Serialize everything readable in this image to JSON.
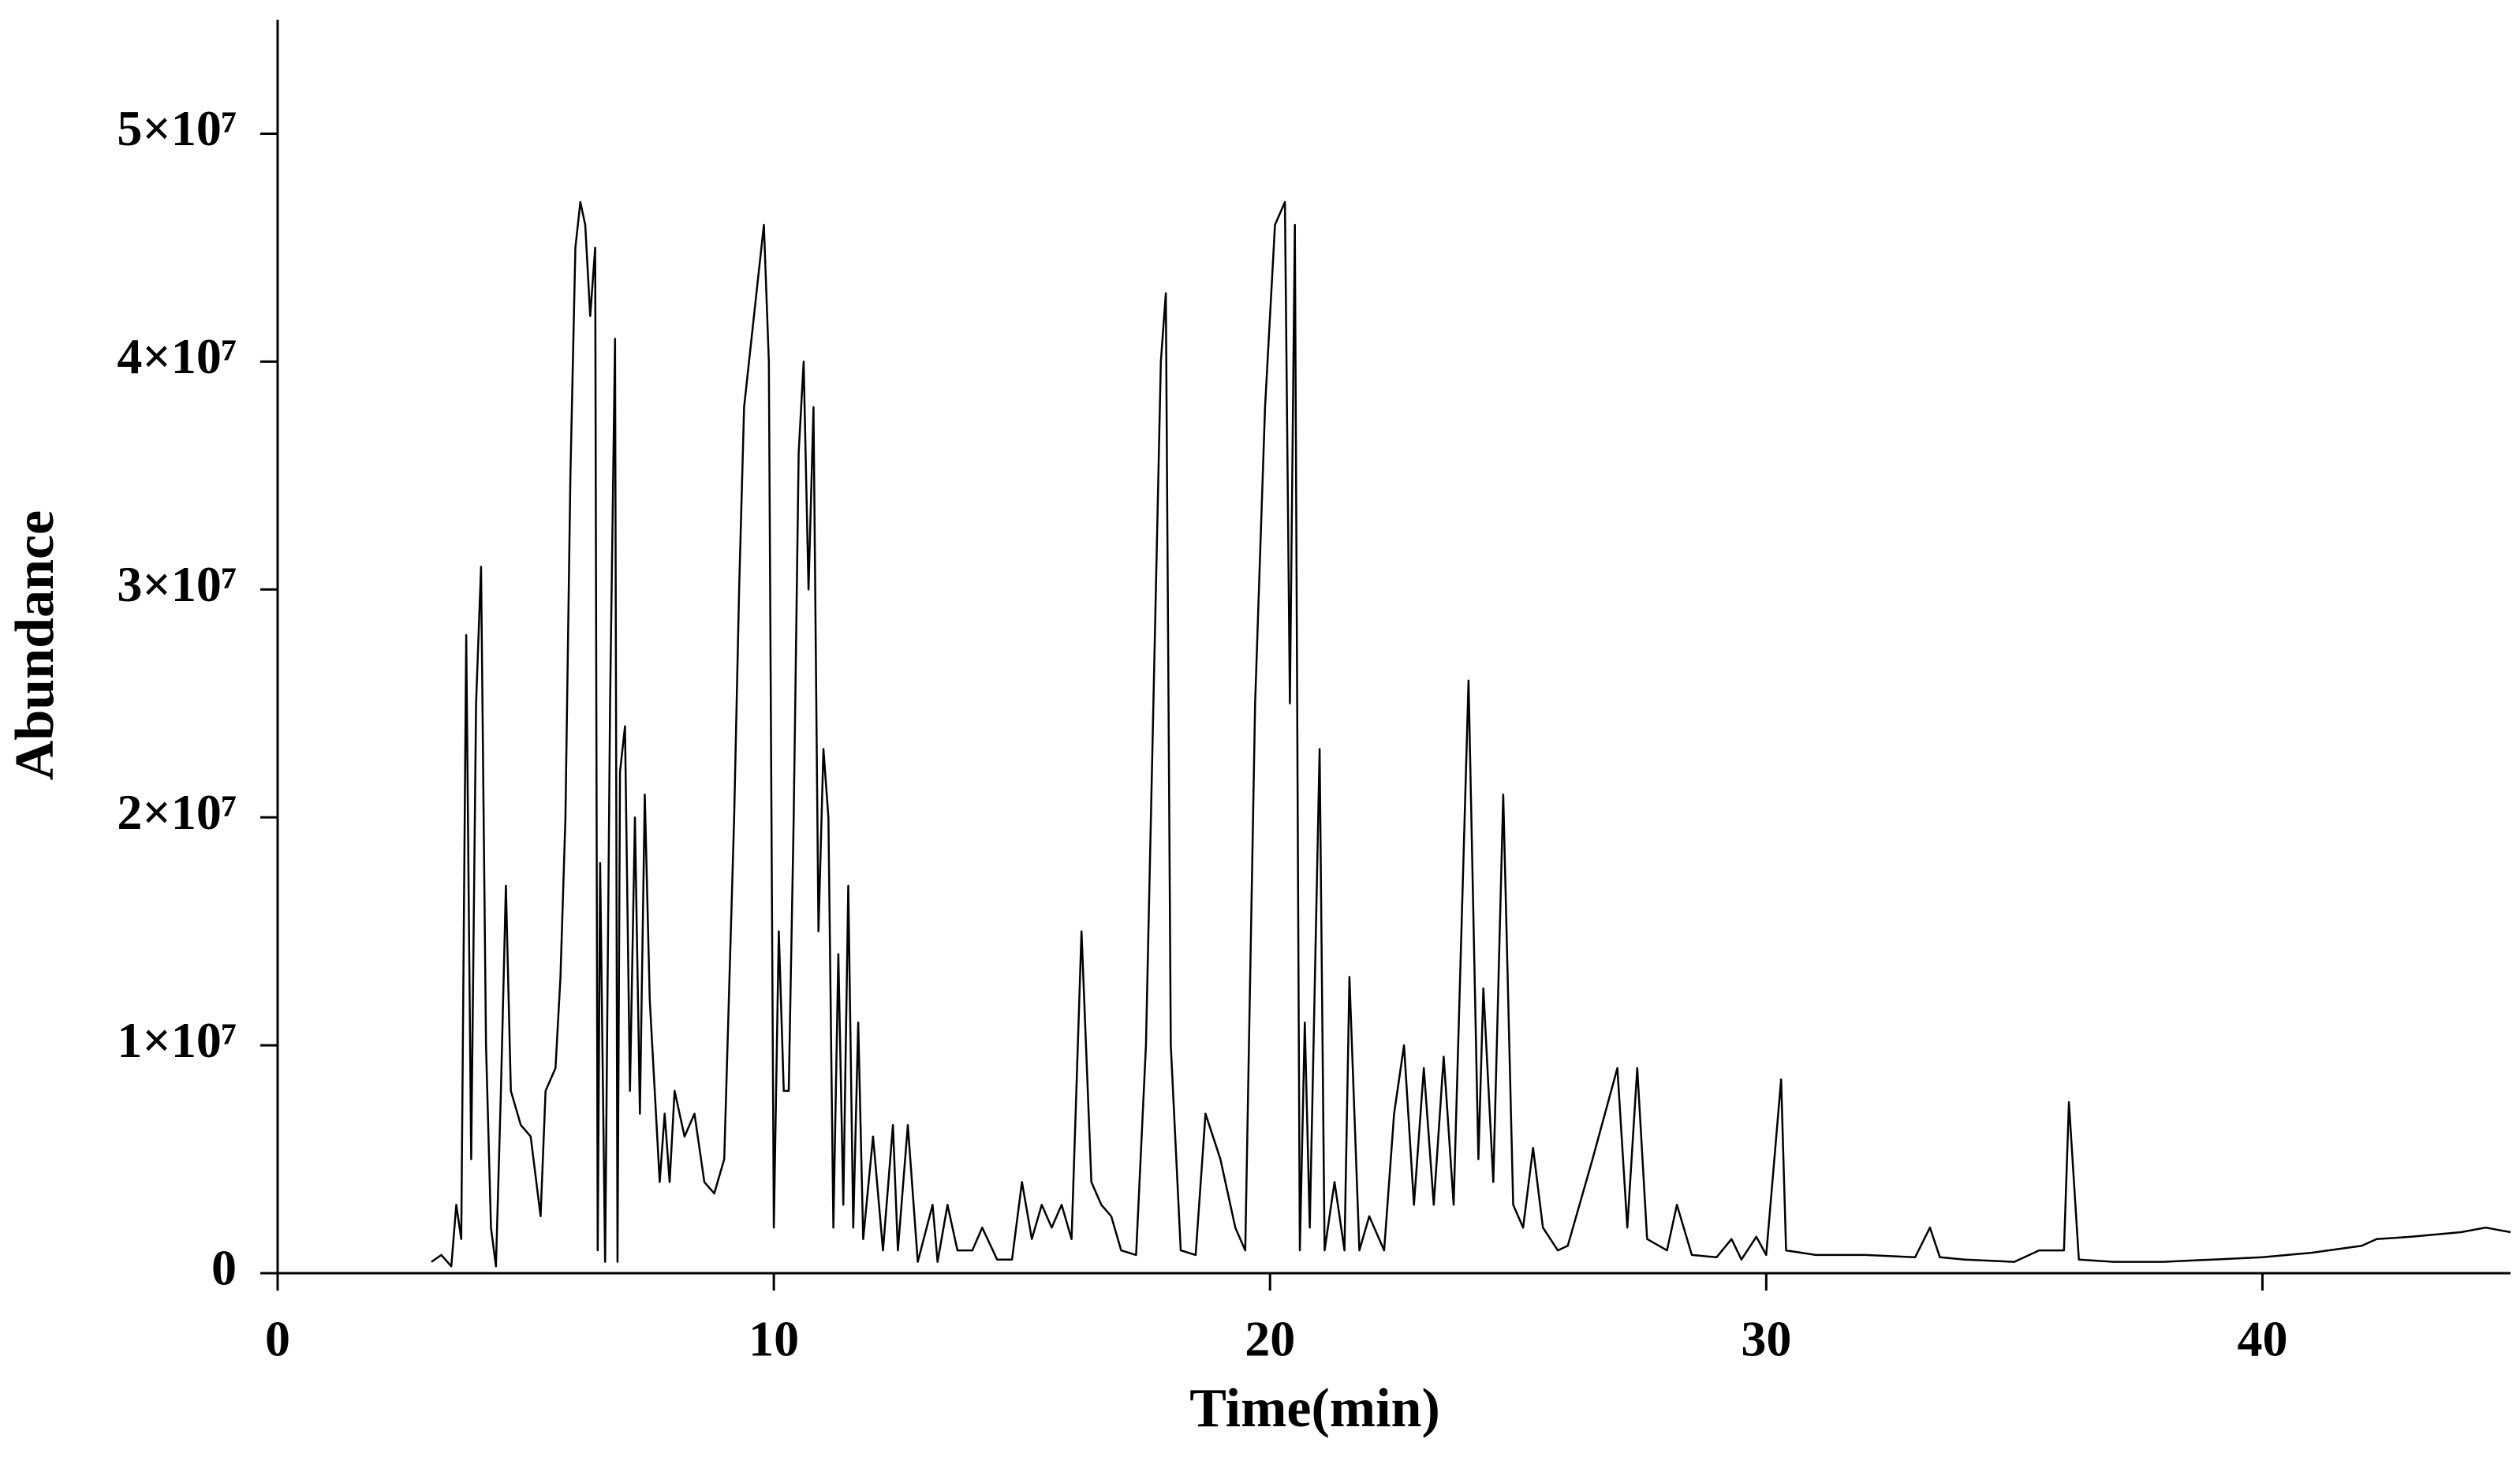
{
  "chart_data": {
    "type": "line",
    "x_label": "Time(min)",
    "y_label": "Abundance",
    "x": [
      3.1,
      3.3,
      3.5,
      3.6,
      3.7,
      3.8,
      3.9,
      4.0,
      4.1,
      4.2,
      4.3,
      4.4,
      4.5,
      4.6,
      4.7,
      4.9,
      5.1,
      5.3,
      5.4,
      5.6,
      5.7,
      5.8,
      5.9,
      6.0,
      6.1,
      6.2,
      6.3,
      6.4,
      6.45,
      6.5,
      6.6,
      6.7,
      6.8,
      6.85,
      6.9,
      7.0,
      7.1,
      7.2,
      7.3,
      7.4,
      7.5,
      7.6,
      7.7,
      7.8,
      7.9,
      8.0,
      8.2,
      8.4,
      8.6,
      8.8,
      9.0,
      9.2,
      9.3,
      9.4,
      9.6,
      9.8,
      9.9,
      10.0,
      10.1,
      10.2,
      10.3,
      10.4,
      10.5,
      10.6,
      10.7,
      10.8,
      10.9,
      11.0,
      11.1,
      11.2,
      11.3,
      11.4,
      11.5,
      11.6,
      11.7,
      11.8,
      12.0,
      12.2,
      12.4,
      12.5,
      12.7,
      12.9,
      13.2,
      13.3,
      13.5,
      13.7,
      14.0,
      14.2,
      14.5,
      14.8,
      15.0,
      15.2,
      15.4,
      15.6,
      15.8,
      16.0,
      16.2,
      16.4,
      16.6,
      16.8,
      17.0,
      17.3,
      17.5,
      17.7,
      17.8,
      17.9,
      18.0,
      18.2,
      18.5,
      18.7,
      19.0,
      19.3,
      19.5,
      19.7,
      19.9,
      20.1,
      20.3,
      20.4,
      20.5,
      20.6,
      20.7,
      20.8,
      21.0,
      21.1,
      21.3,
      21.5,
      21.6,
      21.8,
      22.0,
      22.3,
      22.5,
      22.7,
      22.9,
      23.1,
      23.3,
      23.5,
      23.7,
      24.0,
      24.2,
      24.3,
      24.5,
      24.7,
      24.9,
      25.1,
      25.3,
      25.5,
      25.8,
      26.0,
      26.5,
      27.0,
      27.2,
      27.4,
      27.6,
      28.0,
      28.2,
      28.5,
      29.0,
      29.3,
      29.5,
      29.8,
      30.0,
      30.3,
      30.4,
      31.0,
      32.0,
      33.0,
      33.3,
      33.5,
      34.0,
      35.0,
      35.5,
      36.0,
      36.1,
      36.3,
      37.0,
      38.0,
      39.0,
      40.0,
      41.0,
      42.0,
      42.3,
      43.0,
      44.0,
      44.5,
      45.0
    ],
    "values": [
      500000,
      800000,
      300000,
      3000000,
      1500000,
      28000000,
      5000000,
      25000000,
      31000000,
      10000000,
      2000000,
      300000,
      8000000,
      17000000,
      8000000,
      6500000,
      6000000,
      2500000,
      8000000,
      9000000,
      13000000,
      20000000,
      35000000,
      45000000,
      47000000,
      46000000,
      42000000,
      45000000,
      1000000,
      18000000,
      500000,
      25000000,
      41000000,
      500000,
      22000000,
      24000000,
      8000000,
      20000000,
      7000000,
      21000000,
      12000000,
      8000000,
      4000000,
      7000000,
      4000000,
      8000000,
      6000000,
      7000000,
      4000000,
      3500000,
      5000000,
      20000000,
      30000000,
      38000000,
      42000000,
      46000000,
      40000000,
      2000000,
      15000000,
      8000000,
      8000000,
      20000000,
      36000000,
      40000000,
      30000000,
      38000000,
      15000000,
      23000000,
      20000000,
      2000000,
      14000000,
      3000000,
      17000000,
      2000000,
      11000000,
      1500000,
      6000000,
      1000000,
      6500000,
      1000000,
      6500000,
      500000,
      3000000,
      500000,
      3000000,
      1000000,
      1000000,
      2000000,
      600000,
      600000,
      4000000,
      1500000,
      3000000,
      2000000,
      3000000,
      1500000,
      15000000,
      4000000,
      3000000,
      2500000,
      1000000,
      800000,
      10000000,
      30000000,
      40000000,
      43000000,
      10000000,
      1000000,
      800000,
      7000000,
      5000000,
      2000000,
      1000000,
      25000000,
      38000000,
      46000000,
      47000000,
      25000000,
      46000000,
      1000000,
      11000000,
      2000000,
      23000000,
      1000000,
      4000000,
      1000000,
      13000000,
      1000000,
      2500000,
      1000000,
      7000000,
      10000000,
      3000000,
      9000000,
      3000000,
      9500000,
      3000000,
      26000000,
      5000000,
      12500000,
      4000000,
      21000000,
      3000000,
      2000000,
      5500000,
      2000000,
      1000000,
      1200000,
      5000000,
      9000000,
      2000000,
      9000000,
      1500000,
      1000000,
      3000000,
      800000,
      700000,
      1500000,
      600000,
      1600000,
      800000,
      8500000,
      1000000,
      800000,
      800000,
      700000,
      2000000,
      700000,
      600000,
      500000,
      1000000,
      1000000,
      7500000,
      600000,
      500000,
      500000,
      600000,
      700000,
      900000,
      1200000,
      1500000,
      1600000,
      1800000,
      2000000,
      1800000
    ],
    "color": "#000000",
    "xlim": [
      0,
      45
    ],
    "xticks": [
      0,
      10,
      20,
      30,
      40
    ],
    "ylim": [
      0,
      55000000
    ],
    "yticks": [
      0,
      {
        "value": 10000000,
        "label": "1×10⁷"
      },
      {
        "value": 20000000,
        "label": "2×10⁷"
      },
      {
        "value": 30000000,
        "label": "3×10⁷"
      },
      {
        "value": 40000000,
        "label": "4×10⁷"
      },
      {
        "value": 50000000,
        "label": "5×10⁷"
      }
    ],
    "grid": false
  }
}
